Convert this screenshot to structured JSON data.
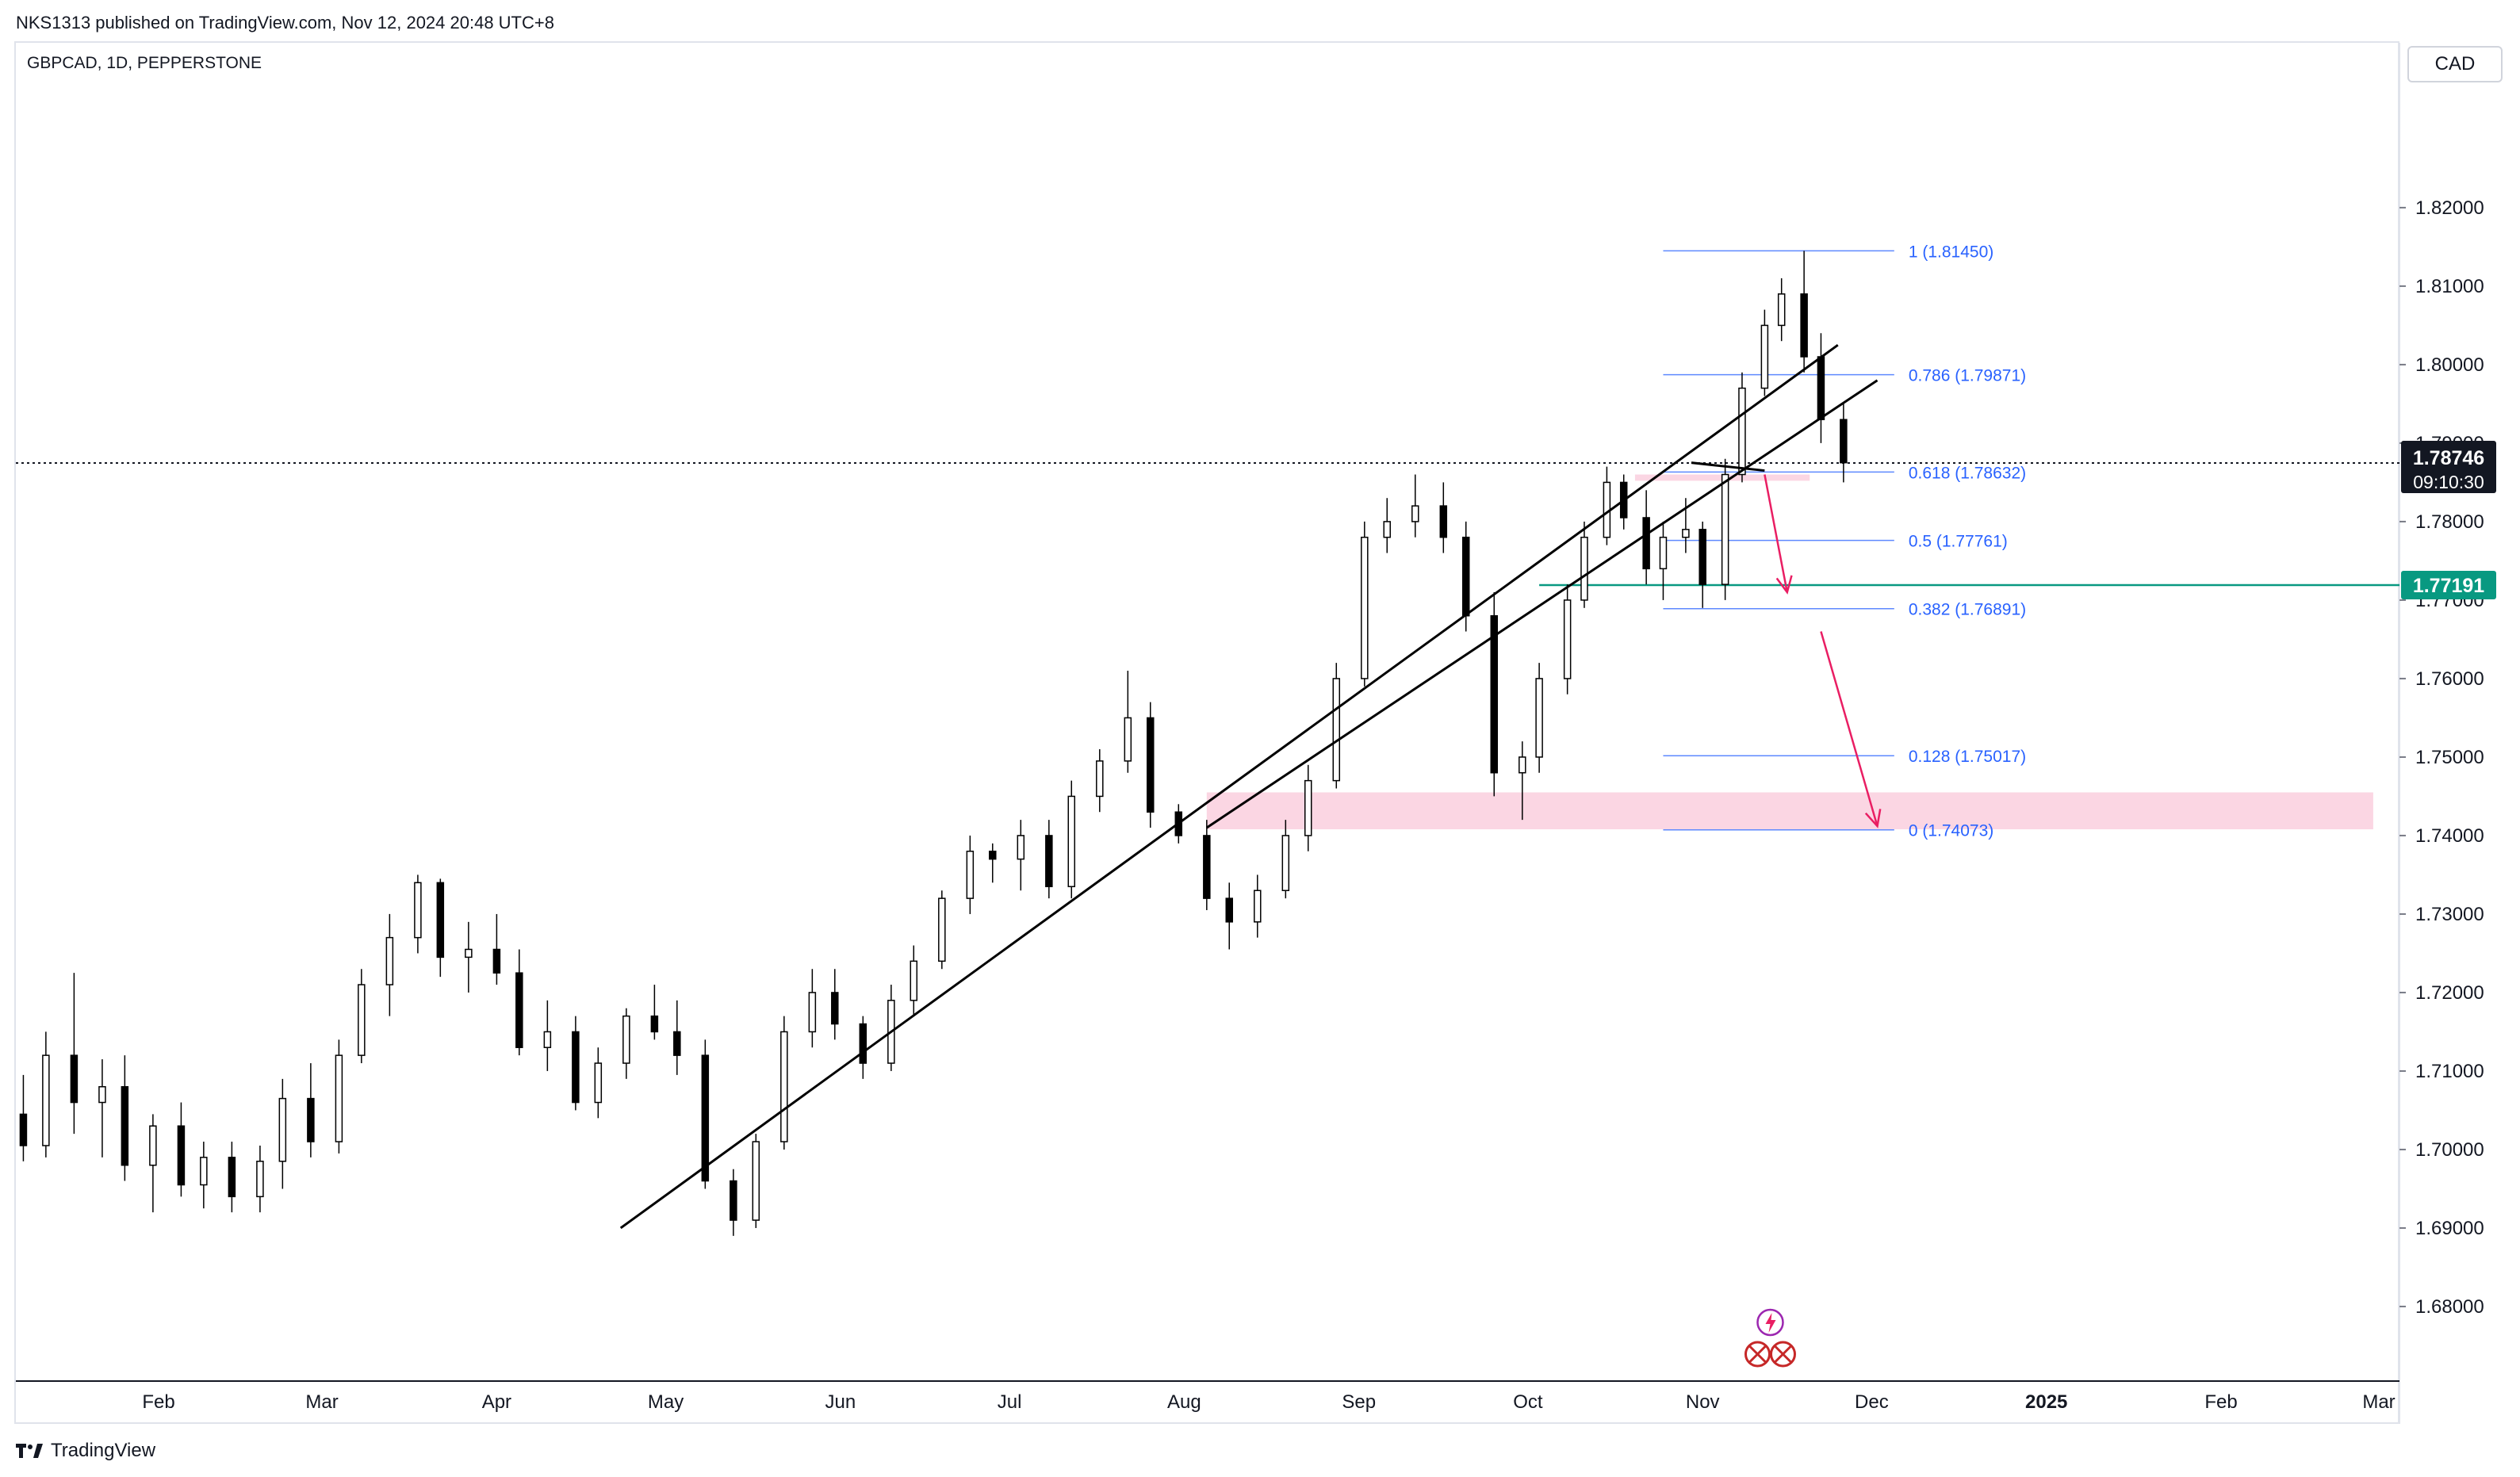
{
  "header": {
    "published_by": "NKS1313 published on TradingView.com, Nov 12, 2024 20:48 UTC+8",
    "symbol": "GBPCAD, 1D, PEPPERSTONE",
    "currency": "CAD"
  },
  "footer": {
    "brand": "TradingView",
    "logo_icon": "tradingview-logo-icon"
  },
  "colors": {
    "up_candle": "#ffffff",
    "down_candle": "#000000",
    "wick": "#000000",
    "fib_line": "#2962ff",
    "support_line": "#089981",
    "arrow": "#e91e63",
    "zone": "#f8bbd0"
  },
  "chart_data": {
    "type": "candlestick",
    "symbol": "GBPCAD",
    "timeframe": "1D",
    "exchange": "PEPPERSTONE",
    "y_axis": {
      "range": [
        1.6705,
        1.841
      ],
      "ticks": [
        "1.82000",
        "1.81000",
        "1.80000",
        "1.79000",
        "1.78000",
        "1.77000",
        "1.76000",
        "1.75000",
        "1.74000",
        "1.73000",
        "1.72000",
        "1.71000",
        "1.70000",
        "1.69000",
        "1.68000"
      ]
    },
    "x_axis": {
      "labels": [
        {
          "label": "Feb",
          "date": "2024-02-01"
        },
        {
          "label": "Mar",
          "date": "2024-03-01"
        },
        {
          "label": "Apr",
          "date": "2024-04-01"
        },
        {
          "label": "May",
          "date": "2024-05-01"
        },
        {
          "label": "Jun",
          "date": "2024-06-01"
        },
        {
          "label": "Jul",
          "date": "2024-07-01"
        },
        {
          "label": "Aug",
          "date": "2024-08-01"
        },
        {
          "label": "Sep",
          "date": "2024-09-01"
        },
        {
          "label": "Oct",
          "date": "2024-10-01"
        },
        {
          "label": "Nov",
          "date": "2024-11-01"
        },
        {
          "label": "Dec",
          "date": "2024-12-01"
        },
        {
          "label": "2025",
          "date": "2025-01-01"
        },
        {
          "label": "Feb",
          "date": "2025-02-01"
        },
        {
          "label": "Mar",
          "date": "2025-03-01"
        }
      ]
    },
    "current_price": {
      "label": "1.78746",
      "value": 1.78746,
      "countdown": "09:10:30"
    },
    "support_level": {
      "label": "1.77191",
      "value": 1.77191,
      "from_date": "2024-10-03"
    },
    "fib_levels": [
      {
        "label": "1 (1.81450)",
        "value": 1.8145
      },
      {
        "label": "0.786 (1.79871)",
        "value": 1.79871
      },
      {
        "label": "0.618 (1.78632)",
        "value": 1.78632
      },
      {
        "label": "0.5 (1.77761)",
        "value": 1.77761
      },
      {
        "label": "0.382 (1.76891)",
        "value": 1.76891
      },
      {
        "label": "0.128 (1.75017)",
        "value": 1.75017
      },
      {
        "label": "0 (1.74073)",
        "value": 1.74073
      }
    ],
    "fib_date_range": [
      "2024-10-25",
      "2024-12-05"
    ],
    "trendlines": [
      {
        "from": {
          "date": "2024-04-23",
          "price": 1.69
        },
        "to": {
          "date": "2024-11-25",
          "price": 1.8025
        }
      },
      {
        "from": {
          "date": "2024-08-05",
          "price": 1.741
        },
        "to": {
          "date": "2024-12-02",
          "price": 1.798
        }
      },
      {
        "from": {
          "date": "2024-10-30",
          "price": 1.7875
        },
        "to": {
          "date": "2024-11-12",
          "price": 1.7865
        }
      }
    ],
    "zones": [
      {
        "from_date": "2024-08-05",
        "to_date": "2025-02-28",
        "top": 1.7455,
        "bottom": 1.7408
      },
      {
        "from_date": "2024-10-20",
        "to_date": "2024-11-20",
        "top": 1.786,
        "bottom": 1.7852
      }
    ],
    "arrows": [
      {
        "from": {
          "date": "2024-11-12",
          "price": 1.786
        },
        "to": {
          "date": "2024-11-16",
          "price": 1.771
        }
      },
      {
        "from": {
          "date": "2024-11-22",
          "price": 1.766
        },
        "to": {
          "date": "2024-12-02",
          "price": 1.7412
        }
      }
    ],
    "candles": [
      {
        "date": "2024-01-03",
        "o": 1.696,
        "h": 1.707,
        "l": 1.6945,
        "c": 1.7045
      },
      {
        "date": "2024-01-08",
        "o": 1.7045,
        "h": 1.7095,
        "l": 1.6985,
        "c": 1.7005
      },
      {
        "date": "2024-01-12",
        "o": 1.7005,
        "h": 1.715,
        "l": 1.699,
        "c": 1.712
      },
      {
        "date": "2024-01-17",
        "o": 1.712,
        "h": 1.7225,
        "l": 1.702,
        "c": 1.706
      },
      {
        "date": "2024-01-22",
        "o": 1.706,
        "h": 1.7115,
        "l": 1.699,
        "c": 1.708
      },
      {
        "date": "2024-01-26",
        "o": 1.708,
        "h": 1.712,
        "l": 1.696,
        "c": 1.698
      },
      {
        "date": "2024-01-31",
        "o": 1.698,
        "h": 1.7045,
        "l": 1.692,
        "c": 1.703
      },
      {
        "date": "2024-02-05",
        "o": 1.703,
        "h": 1.706,
        "l": 1.694,
        "c": 1.6955
      },
      {
        "date": "2024-02-09",
        "o": 1.6955,
        "h": 1.701,
        "l": 1.6925,
        "c": 1.699
      },
      {
        "date": "2024-02-14",
        "o": 1.699,
        "h": 1.701,
        "l": 1.692,
        "c": 1.694
      },
      {
        "date": "2024-02-19",
        "o": 1.694,
        "h": 1.7005,
        "l": 1.692,
        "c": 1.6985
      },
      {
        "date": "2024-02-23",
        "o": 1.6985,
        "h": 1.709,
        "l": 1.695,
        "c": 1.7065
      },
      {
        "date": "2024-02-28",
        "o": 1.7065,
        "h": 1.711,
        "l": 1.699,
        "c": 1.701
      },
      {
        "date": "2024-03-04",
        "o": 1.701,
        "h": 1.714,
        "l": 1.6995,
        "c": 1.712
      },
      {
        "date": "2024-03-08",
        "o": 1.712,
        "h": 1.723,
        "l": 1.711,
        "c": 1.721
      },
      {
        "date": "2024-03-13",
        "o": 1.721,
        "h": 1.73,
        "l": 1.717,
        "c": 1.727
      },
      {
        "date": "2024-03-18",
        "o": 1.727,
        "h": 1.735,
        "l": 1.725,
        "c": 1.734
      },
      {
        "date": "2024-03-22",
        "o": 1.734,
        "h": 1.7345,
        "l": 1.722,
        "c": 1.7245
      },
      {
        "date": "2024-03-27",
        "o": 1.7245,
        "h": 1.729,
        "l": 1.72,
        "c": 1.7255
      },
      {
        "date": "2024-04-01",
        "o": 1.7255,
        "h": 1.73,
        "l": 1.721,
        "c": 1.7225
      },
      {
        "date": "2024-04-05",
        "o": 1.7225,
        "h": 1.7255,
        "l": 1.712,
        "c": 1.713
      },
      {
        "date": "2024-04-10",
        "o": 1.713,
        "h": 1.719,
        "l": 1.71,
        "c": 1.715
      },
      {
        "date": "2024-04-15",
        "o": 1.715,
        "h": 1.717,
        "l": 1.705,
        "c": 1.706
      },
      {
        "date": "2024-04-19",
        "o": 1.706,
        "h": 1.713,
        "l": 1.704,
        "c": 1.711
      },
      {
        "date": "2024-04-24",
        "o": 1.711,
        "h": 1.718,
        "l": 1.709,
        "c": 1.717
      },
      {
        "date": "2024-04-29",
        "o": 1.717,
        "h": 1.721,
        "l": 1.714,
        "c": 1.715
      },
      {
        "date": "2024-05-03",
        "o": 1.715,
        "h": 1.719,
        "l": 1.7095,
        "c": 1.712
      },
      {
        "date": "2024-05-08",
        "o": 1.712,
        "h": 1.714,
        "l": 1.695,
        "c": 1.696
      },
      {
        "date": "2024-05-13",
        "o": 1.696,
        "h": 1.6975,
        "l": 1.689,
        "c": 1.691
      },
      {
        "date": "2024-05-17",
        "o": 1.691,
        "h": 1.702,
        "l": 1.69,
        "c": 1.701
      },
      {
        "date": "2024-05-22",
        "o": 1.701,
        "h": 1.717,
        "l": 1.7,
        "c": 1.715
      },
      {
        "date": "2024-05-27",
        "o": 1.715,
        "h": 1.723,
        "l": 1.713,
        "c": 1.72
      },
      {
        "date": "2024-05-31",
        "o": 1.72,
        "h": 1.723,
        "l": 1.714,
        "c": 1.716
      },
      {
        "date": "2024-06-05",
        "o": 1.716,
        "h": 1.717,
        "l": 1.709,
        "c": 1.711
      },
      {
        "date": "2024-06-10",
        "o": 1.711,
        "h": 1.721,
        "l": 1.71,
        "c": 1.719
      },
      {
        "date": "2024-06-14",
        "o": 1.719,
        "h": 1.726,
        "l": 1.717,
        "c": 1.724
      },
      {
        "date": "2024-06-19",
        "o": 1.724,
        "h": 1.733,
        "l": 1.723,
        "c": 1.732
      },
      {
        "date": "2024-06-24",
        "o": 1.732,
        "h": 1.74,
        "l": 1.73,
        "c": 1.738
      },
      {
        "date": "2024-06-28",
        "o": 1.738,
        "h": 1.739,
        "l": 1.734,
        "c": 1.737
      },
      {
        "date": "2024-07-03",
        "o": 1.737,
        "h": 1.742,
        "l": 1.733,
        "c": 1.74
      },
      {
        "date": "2024-07-08",
        "o": 1.74,
        "h": 1.742,
        "l": 1.732,
        "c": 1.7335
      },
      {
        "date": "2024-07-12",
        "o": 1.7335,
        "h": 1.747,
        "l": 1.732,
        "c": 1.745
      },
      {
        "date": "2024-07-17",
        "o": 1.745,
        "h": 1.751,
        "l": 1.743,
        "c": 1.7495
      },
      {
        "date": "2024-07-22",
        "o": 1.7495,
        "h": 1.761,
        "l": 1.748,
        "c": 1.755
      },
      {
        "date": "2024-07-26",
        "o": 1.755,
        "h": 1.757,
        "l": 1.741,
        "c": 1.743
      },
      {
        "date": "2024-07-31",
        "o": 1.743,
        "h": 1.744,
        "l": 1.739,
        "c": 1.74
      },
      {
        "date": "2024-08-05",
        "o": 1.74,
        "h": 1.742,
        "l": 1.7305,
        "c": 1.732
      },
      {
        "date": "2024-08-09",
        "o": 1.732,
        "h": 1.734,
        "l": 1.7255,
        "c": 1.729
      },
      {
        "date": "2024-08-14",
        "o": 1.729,
        "h": 1.735,
        "l": 1.727,
        "c": 1.733
      },
      {
        "date": "2024-08-19",
        "o": 1.733,
        "h": 1.742,
        "l": 1.732,
        "c": 1.74
      },
      {
        "date": "2024-08-23",
        "o": 1.74,
        "h": 1.749,
        "l": 1.738,
        "c": 1.747
      },
      {
        "date": "2024-08-28",
        "o": 1.747,
        "h": 1.762,
        "l": 1.746,
        "c": 1.76
      },
      {
        "date": "2024-09-02",
        "o": 1.76,
        "h": 1.78,
        "l": 1.759,
        "c": 1.778
      },
      {
        "date": "2024-09-06",
        "o": 1.778,
        "h": 1.783,
        "l": 1.776,
        "c": 1.78
      },
      {
        "date": "2024-09-11",
        "o": 1.78,
        "h": 1.786,
        "l": 1.778,
        "c": 1.782
      },
      {
        "date": "2024-09-16",
        "o": 1.782,
        "h": 1.785,
        "l": 1.776,
        "c": 1.778
      },
      {
        "date": "2024-09-20",
        "o": 1.778,
        "h": 1.78,
        "l": 1.766,
        "c": 1.768
      },
      {
        "date": "2024-09-25",
        "o": 1.768,
        "h": 1.771,
        "l": 1.745,
        "c": 1.748
      },
      {
        "date": "2024-09-30",
        "o": 1.748,
        "h": 1.752,
        "l": 1.742,
        "c": 1.75
      },
      {
        "date": "2024-10-03",
        "o": 1.75,
        "h": 1.762,
        "l": 1.748,
        "c": 1.76
      },
      {
        "date": "2024-10-08",
        "o": 1.76,
        "h": 1.772,
        "l": 1.758,
        "c": 1.77
      },
      {
        "date": "2024-10-11",
        "o": 1.77,
        "h": 1.78,
        "l": 1.769,
        "c": 1.778
      },
      {
        "date": "2024-10-15",
        "o": 1.778,
        "h": 1.787,
        "l": 1.777,
        "c": 1.785
      },
      {
        "date": "2024-10-18",
        "o": 1.785,
        "h": 1.786,
        "l": 1.779,
        "c": 1.7805
      },
      {
        "date": "2024-10-22",
        "o": 1.7805,
        "h": 1.784,
        "l": 1.772,
        "c": 1.774
      },
      {
        "date": "2024-10-25",
        "o": 1.774,
        "h": 1.78,
        "l": 1.77,
        "c": 1.778
      },
      {
        "date": "2024-10-29",
        "o": 1.778,
        "h": 1.783,
        "l": 1.776,
        "c": 1.779
      },
      {
        "date": "2024-11-01",
        "o": 1.779,
        "h": 1.78,
        "l": 1.769,
        "c": 1.772
      },
      {
        "date": "2024-11-05",
        "o": 1.772,
        "h": 1.788,
        "l": 1.77,
        "c": 1.786
      },
      {
        "date": "2024-11-08",
        "o": 1.786,
        "h": 1.799,
        "l": 1.785,
        "c": 1.797
      },
      {
        "date": "2024-11-12",
        "o": 1.797,
        "h": 1.807,
        "l": 1.796,
        "c": 1.805
      },
      {
        "date": "2024-11-15",
        "o": 1.805,
        "h": 1.811,
        "l": 1.803,
        "c": 1.809
      },
      {
        "date": "2024-11-19",
        "o": 1.809,
        "h": 1.8145,
        "l": 1.799,
        "c": 1.801
      },
      {
        "date": "2024-11-22",
        "o": 1.801,
        "h": 1.804,
        "l": 1.79,
        "c": 1.793
      },
      {
        "date": "2024-11-26",
        "o": 1.793,
        "h": 1.795,
        "l": 1.785,
        "c": 1.7875
      }
    ]
  }
}
